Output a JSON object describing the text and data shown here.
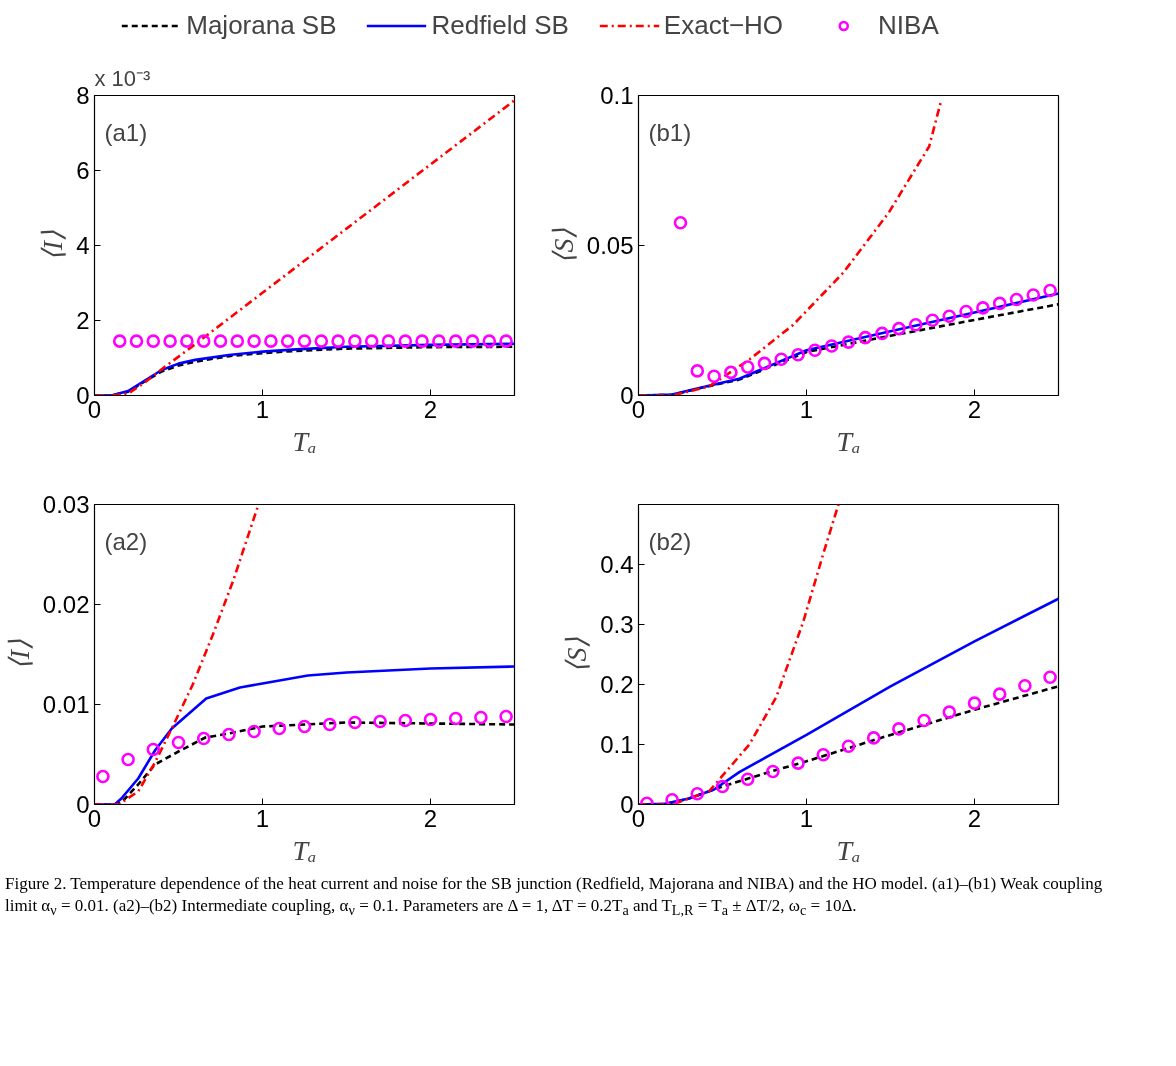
{
  "chart_data": [
    {
      "type": "line",
      "title": "(a1)",
      "xlabel": "Tₐ",
      "ylabel": "⟨I⟩",
      "legend": "top",
      "annotations": [
        "x 10⁻³"
      ],
      "xlim": [
        0,
        2.5
      ],
      "ylim": [
        0,
        8
      ],
      "xticks": [
        0,
        1,
        2
      ],
      "yticks": [
        0,
        2,
        4,
        6,
        8
      ],
      "series": [
        {
          "name": "Majorana SB",
          "line_style": "dashed",
          "color": "#000000",
          "x": [
            0,
            0.1,
            0.2,
            0.3,
            0.4,
            0.5,
            0.6,
            0.8,
            1.0,
            1.2,
            1.5,
            2.0,
            2.5
          ],
          "values": [
            0,
            0,
            0.1,
            0.38,
            0.64,
            0.8,
            0.9,
            1.05,
            1.13,
            1.19,
            1.25,
            1.29,
            1.3
          ]
        },
        {
          "name": "Redfield SB",
          "line_style": "solid",
          "color": "#0000ff",
          "x": [
            0,
            0.1,
            0.2,
            0.3,
            0.4,
            0.5,
            0.6,
            0.8,
            1.0,
            1.2,
            1.5,
            2.0,
            2.5
          ],
          "values": [
            0,
            0,
            0.12,
            0.4,
            0.68,
            0.85,
            0.95,
            1.08,
            1.17,
            1.23,
            1.3,
            1.35,
            1.38
          ]
        },
        {
          "name": "Exact−HO",
          "line_style": "dashdot",
          "color": "#ff0000",
          "x": [
            0,
            0.1,
            0.2,
            0.3,
            0.4,
            0.6,
            1.0,
            1.5,
            2.0,
            2.5
          ],
          "values": [
            0,
            0,
            0.05,
            0.35,
            0.7,
            1.37,
            2.74,
            4.45,
            6.16,
            7.87
          ]
        },
        {
          "name": "NIBA",
          "type": "scatter",
          "marker": "circle",
          "color": "#ff00ff",
          "x": [
            0.15,
            0.25,
            0.35,
            0.45,
            0.55,
            0.65,
            0.75,
            0.85,
            0.95,
            1.05,
            1.15,
            1.25,
            1.35,
            1.45,
            1.55,
            1.65,
            1.75,
            1.85,
            1.95,
            2.05,
            2.15,
            2.25,
            2.35,
            2.45
          ],
          "values": [
            1.45,
            1.45,
            1.45,
            1.45,
            1.45,
            1.45,
            1.45,
            1.45,
            1.45,
            1.45,
            1.45,
            1.45,
            1.45,
            1.45,
            1.45,
            1.45,
            1.45,
            1.45,
            1.45,
            1.45,
            1.45,
            1.45,
            1.45,
            1.45
          ]
        }
      ]
    },
    {
      "type": "line",
      "title": "(b1)",
      "xlabel": "Tₐ",
      "ylabel": "⟨S⟩",
      "xlim": [
        0,
        2.5
      ],
      "ylim": [
        0,
        0.1
      ],
      "xticks": [
        0,
        1,
        2
      ],
      "yticks": [
        0,
        0.05,
        0.1
      ],
      "series": [
        {
          "line_style": "dashed",
          "color": "#000000",
          "x": [
            0,
            0.2,
            0.4,
            0.6,
            1.0,
            1.5,
            2.0,
            2.5
          ],
          "values": [
            0,
            0.0002,
            0.0029,
            0.0053,
            0.0145,
            0.0199,
            0.0252,
            0.0304
          ]
        },
        {
          "line_style": "solid",
          "color": "#0000ff",
          "x": [
            0,
            0.2,
            0.4,
            0.6,
            1.0,
            1.5,
            2.0,
            2.5
          ],
          "values": [
            0,
            0.0003,
            0.003,
            0.0056,
            0.0151,
            0.0214,
            0.0277,
            0.034
          ]
        },
        {
          "line_style": "dashdot",
          "color": "#ff0000",
          "x": [
            0,
            0.2,
            0.42,
            0.66,
            0.92,
            1.22,
            1.49,
            1.73,
            1.8
          ],
          "values": [
            0,
            0,
            0.003,
            0.012,
            0.0235,
            0.041,
            0.061,
            0.083,
            0.098
          ]
        },
        {
          "type": "scatter",
          "marker": "circle",
          "color": "#ff00ff",
          "x": [
            0.25,
            0.35,
            0.45,
            0.55,
            0.65,
            0.75,
            0.85,
            0.95,
            1.05,
            1.15,
            1.25,
            1.35,
            1.45,
            1.55,
            1.65,
            1.75,
            1.85,
            1.95,
            2.05,
            2.15,
            2.25,
            2.35,
            2.45
          ],
          "values": [
            0.0576,
            0.0082,
            0.0064,
            0.0077,
            0.0095,
            0.0107,
            0.0121,
            0.0136,
            0.0151,
            0.0165,
            0.0178,
            0.0193,
            0.0207,
            0.0223,
            0.0236,
            0.0251,
            0.0264,
            0.028,
            0.0292,
            0.0307,
            0.032,
            0.0335,
            0.035
          ]
        }
      ]
    },
    {
      "type": "line",
      "title": "(a2)",
      "xlabel": "Tₐ",
      "ylabel": "⟨I⟩",
      "xlim": [
        0,
        2.5
      ],
      "ylim": [
        0,
        0.03
      ],
      "xticks": [
        0,
        1,
        2
      ],
      "yticks": [
        0,
        0.01,
        0.02,
        0.03
      ],
      "series": [
        {
          "line_style": "dashed",
          "color": "#000000",
          "x": [
            0,
            0.12,
            0.16,
            0.26,
            0.36,
            0.5,
            0.66,
            0.8,
            1.0,
            1.5,
            2.0,
            2.5
          ],
          "values": [
            0,
            0,
            0.0002,
            0.002,
            0.004,
            0.0053,
            0.0067,
            0.0071,
            0.0078,
            0.0082,
            0.0081,
            0.008
          ]
        },
        {
          "line_style": "solid",
          "color": "#0000ff",
          "x": [
            0,
            0.12,
            0.16,
            0.26,
            0.36,
            0.46,
            0.665,
            0.866,
            1.0,
            1.27,
            1.5,
            2.0,
            2.5
          ],
          "values": [
            0,
            0,
            0.0006,
            0.0026,
            0.0054,
            0.0076,
            0.0106,
            0.0117,
            0.0121,
            0.0129,
            0.0132,
            0.0136,
            0.0138
          ]
        },
        {
          "line_style": "dashdot",
          "color": "#ff0000",
          "x": [
            0,
            0.1,
            0.144,
            0.26,
            0.36,
            0.46,
            0.585,
            0.705,
            0.826,
            0.976
          ],
          "values": [
            0,
            0,
            0,
            0.0013,
            0.0042,
            0.0076,
            0.012,
            0.017,
            0.0224,
            0.03
          ]
        },
        {
          "type": "scatter",
          "marker": "circle",
          "color": "#ff00ff",
          "x": [
            0.05,
            0.2,
            0.35,
            0.5,
            0.65,
            0.8,
            0.95,
            1.1,
            1.25,
            1.4,
            1.55,
            1.7,
            1.85,
            2.0,
            2.15,
            2.3,
            2.45
          ],
          "values": [
            0.0028,
            0.0045,
            0.0055,
            0.0062,
            0.0066,
            0.007,
            0.0073,
            0.0076,
            0.0078,
            0.008,
            0.0082,
            0.0083,
            0.0084,
            0.0085,
            0.0086,
            0.0087,
            0.0088
          ]
        }
      ]
    },
    {
      "type": "line",
      "title": "(b2)",
      "xlabel": "Tₐ",
      "ylabel": "⟨S⟩",
      "xlim": [
        0,
        2.5
      ],
      "ylim": [
        0,
        0.5
      ],
      "xticks": [
        0,
        1,
        2
      ],
      "yticks": [
        0,
        0.1,
        0.2,
        0.3,
        0.4
      ],
      "annotations": [
        "Figure 2. Temperature dependence of the heat current and noise for the SB junction (Redfield, Majorana and NIBA) and the HO model. (a1)–(b1) Weak coupling limit α$_{ν}$ = 0.01. (a2)–(b2) Intermediate coupling, α$_{ν}$ = 0.1. Parameters are Δ = 1, ΔT = 0.2T$_{a}$ and T$_{L,R}$ = T$_{a}$ ± ΔT/2, ω$_{c}$ = 10Δ."
      ],
      "series": [
        {
          "line_style": "dashed",
          "color": "#000000",
          "x": [
            0,
            0.15,
            0.3,
            0.5,
            0.8,
            1.0,
            1.5,
            2.0,
            2.5
          ],
          "values": [
            0,
            0,
            0.01,
            0.03,
            0.056,
            0.072,
            0.116,
            0.158,
            0.197
          ]
        },
        {
          "line_style": "solid",
          "color": "#0000ff",
          "x": [
            0,
            0.15,
            0.3,
            0.45,
            0.6,
            1.0,
            1.5,
            2.0,
            2.5
          ],
          "values": [
            0,
            0.001,
            0.01,
            0.025,
            0.054,
            0.116,
            0.197,
            0.272,
            0.343
          ]
        },
        {
          "line_style": "dashdot",
          "color": "#ff0000",
          "x": [
            0,
            0.15,
            0.22,
            0.42,
            0.5,
            0.66,
            0.82,
            0.98,
            1.1,
            1.19
          ],
          "values": [
            0,
            0,
            0.002,
            0.022,
            0.048,
            0.1,
            0.179,
            0.304,
            0.418,
            0.5
          ]
        },
        {
          "type": "scatter",
          "marker": "circle",
          "color": "#ff00ff",
          "x": [
            0.05,
            0.2,
            0.35,
            0.5,
            0.65,
            0.8,
            0.95,
            1.1,
            1.25,
            1.4,
            1.55,
            1.7,
            1.85,
            2.0,
            2.15,
            2.3,
            2.45
          ],
          "values": [
            0.002,
            0.008,
            0.018,
            0.03,
            0.042,
            0.055,
            0.069,
            0.083,
            0.097,
            0.111,
            0.126,
            0.14,
            0.154,
            0.169,
            0.184,
            0.198,
            0.212
          ]
        }
      ]
    }
  ]
}
